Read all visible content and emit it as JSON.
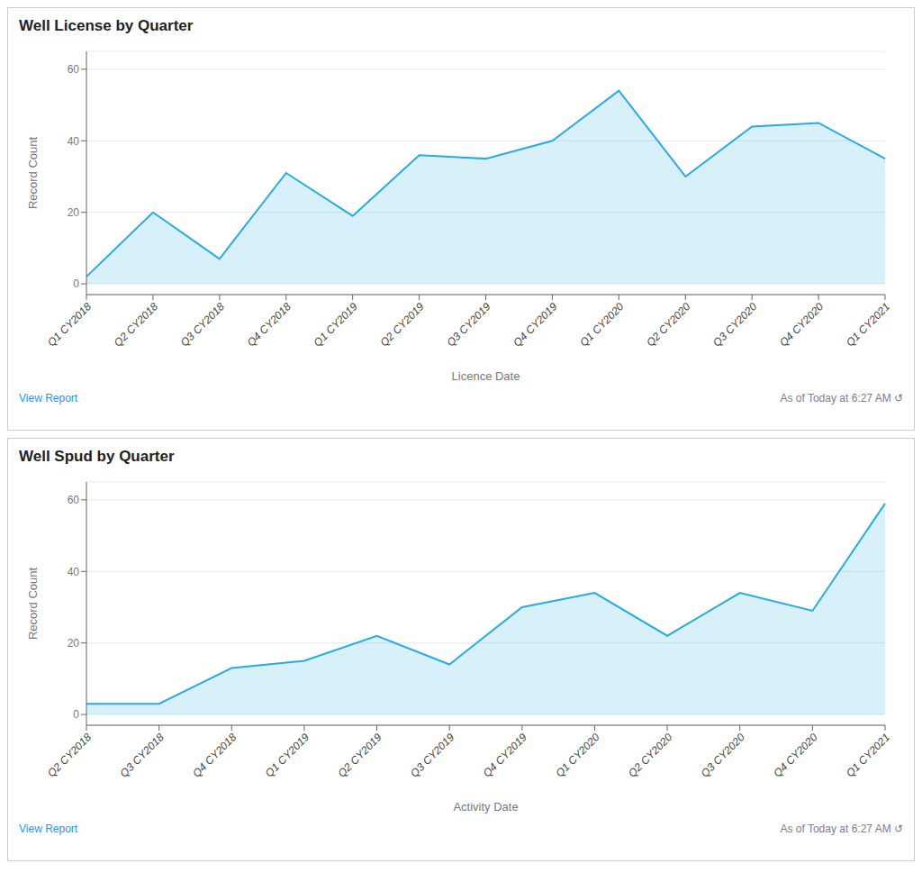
{
  "chart_data": [
    {
      "type": "area",
      "title": "Well License by Quarter",
      "xlabel": "Licence Date",
      "ylabel": "Record Count",
      "categories": [
        "Q1 CY2018",
        "Q2 CY2018",
        "Q3 CY2018",
        "Q4 CY2018",
        "Q1 CY2019",
        "Q2 CY2019",
        "Q3 CY2019",
        "Q4 CY2019",
        "Q1 CY2020",
        "Q2 CY2020",
        "Q3 CY2020",
        "Q4 CY2020",
        "Q1 CY2021"
      ],
      "values": [
        2,
        20,
        7,
        31,
        19,
        36,
        35,
        40,
        54,
        30,
        44,
        45,
        35
      ],
      "ylim": [
        -3,
        65
      ],
      "yticks": [
        0,
        20,
        40,
        60
      ],
      "color": "#29ABE2",
      "grid": true,
      "annotations": [
        "View Report",
        "As of Today at 6:27 AM ↺"
      ]
    },
    {
      "type": "area",
      "title": "Well Spud by Quarter",
      "xlabel": "Activity Date",
      "ylabel": "Record Count",
      "categories": [
        "Q2 CY2018",
        "Q3 CY2018",
        "Q4 CY2018",
        "Q1 CY2019",
        "Q2 CY2019",
        "Q3 CY2019",
        "Q4 CY2019",
        "Q1 CY2020",
        "Q2 CY2020",
        "Q3 CY2020",
        "Q4 CY2020",
        "Q1 CY2021"
      ],
      "values": [
        3,
        3,
        13,
        15,
        22,
        14,
        30,
        34,
        22,
        34,
        29,
        59
      ],
      "ylim": [
        -3,
        65
      ],
      "yticks": [
        0,
        20,
        40,
        60
      ],
      "color": "#29ABE2",
      "grid": true,
      "annotations": [
        "View Report",
        "As of Today at 6:27 AM ↺"
      ]
    }
  ]
}
